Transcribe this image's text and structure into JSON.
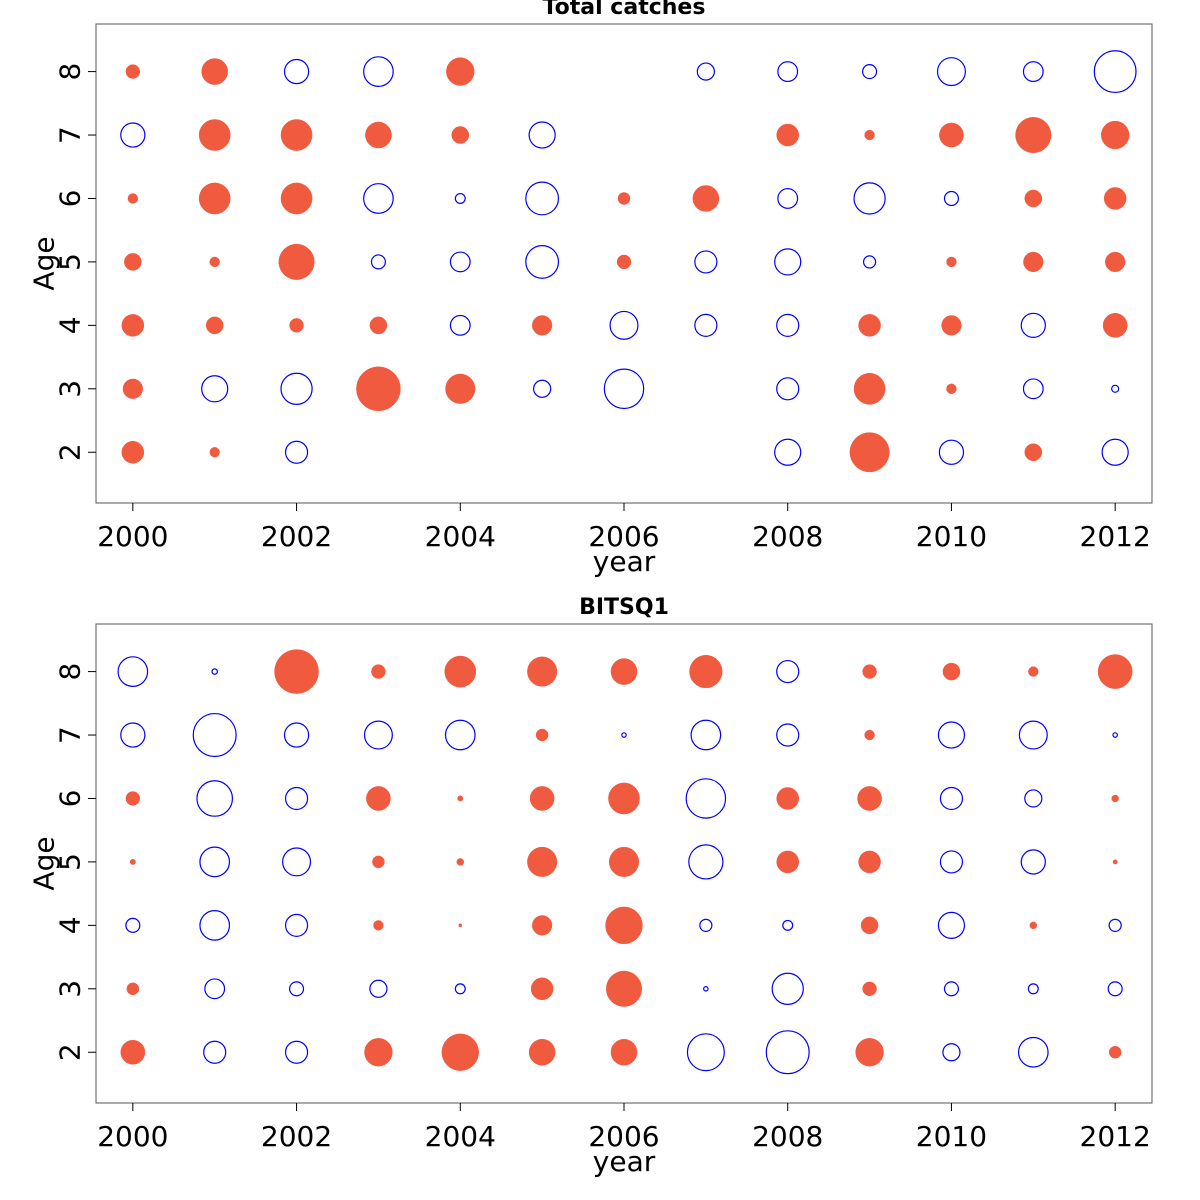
{
  "chart_data": [
    {
      "type": "scatter",
      "subtype": "bubble",
      "title": "Total catches",
      "xlabel": "year",
      "ylabel": "Age",
      "xlim": [
        1999.55,
        2012.45
      ],
      "ylim": [
        1.2,
        8.75
      ],
      "x_ticks": [
        2000,
        2002,
        2004,
        2006,
        2008,
        2010,
        2012
      ],
      "y_ticks": [
        2,
        3,
        4,
        5,
        6,
        7,
        8
      ],
      "legend": "none",
      "colors": {
        "positive": "#f05a3f",
        "negative": "#0000ff"
      },
      "years": [
        2000,
        2001,
        2002,
        2003,
        2004,
        2005,
        2006,
        2007,
        2008,
        2009,
        2010,
        2011,
        2012
      ],
      "ages": [
        2,
        3,
        4,
        5,
        6,
        7,
        8
      ],
      "note": "bubble area proportional to |value|; positive = filled red, negative = open blue; null = no bubble",
      "values": {
        "2": [
          0.5,
          0.1,
          -0.5,
          null,
          null,
          null,
          null,
          null,
          -0.7,
          1.6,
          -0.6,
          0.3,
          -0.7
        ],
        "3": [
          0.4,
          -0.7,
          -1.0,
          2.0,
          0.9,
          -0.3,
          -1.6,
          null,
          -0.5,
          1.0,
          0.1,
          -0.4,
          -0.05
        ],
        "4": [
          0.5,
          0.3,
          0.2,
          0.3,
          -0.4,
          0.4,
          -0.8,
          -0.5,
          -0.5,
          0.5,
          0.4,
          -0.6,
          0.6
        ],
        "5": [
          0.3,
          0.1,
          1.3,
          -0.2,
          -0.4,
          -1.1,
          0.2,
          -0.5,
          -0.7,
          -0.15,
          0.1,
          0.4,
          0.4
        ],
        "6": [
          0.1,
          1.0,
          1.0,
          -0.9,
          -0.1,
          -1.1,
          0.15,
          0.7,
          -0.4,
          -1.0,
          -0.2,
          0.3,
          0.5
        ],
        "7": [
          -0.6,
          1.0,
          1.0,
          0.7,
          0.3,
          -0.7,
          null,
          null,
          0.5,
          0.1,
          0.6,
          1.3,
          0.8
        ],
        "8": [
          0.2,
          0.7,
          -0.6,
          -0.9,
          0.8,
          null,
          null,
          -0.3,
          -0.4,
          -0.2,
          -0.8,
          -0.4,
          -1.8
        ]
      }
    },
    {
      "type": "scatter",
      "subtype": "bubble",
      "title": "BITSQ1",
      "xlabel": "year",
      "ylabel": "Age",
      "xlim": [
        1999.55,
        2012.45
      ],
      "ylim": [
        1.2,
        8.75
      ],
      "x_ticks": [
        2000,
        2002,
        2004,
        2006,
        2008,
        2010,
        2012
      ],
      "y_ticks": [
        2,
        3,
        4,
        5,
        6,
        7,
        8
      ],
      "legend": "none",
      "colors": {
        "positive": "#f05a3f",
        "negative": "#0000ff"
      },
      "years": [
        2000,
        2001,
        2002,
        2003,
        2004,
        2005,
        2006,
        2007,
        2008,
        2009,
        2010,
        2011,
        2012
      ],
      "ages": [
        2,
        3,
        4,
        5,
        6,
        7,
        8
      ],
      "note": "bubble area proportional to |value|; positive = filled red, negative = open blue",
      "values": {
        "2": [
          0.6,
          -0.5,
          -0.5,
          0.8,
          1.4,
          0.7,
          0.7,
          -1.4,
          -1.9,
          0.8,
          -0.3,
          -0.9,
          0.15
        ],
        "3": [
          0.15,
          -0.4,
          -0.2,
          -0.3,
          -0.1,
          0.5,
          1.3,
          -0.02,
          -1.0,
          0.2,
          -0.2,
          -0.1,
          -0.2
        ],
        "4": [
          -0.2,
          -0.9,
          -0.5,
          0.1,
          0.01,
          0.4,
          1.4,
          -0.15,
          -0.1,
          0.3,
          -0.7,
          0.05,
          -0.15
        ],
        "5": [
          0.03,
          -0.9,
          -0.8,
          0.15,
          0.05,
          0.9,
          0.9,
          -1.2,
          0.5,
          0.5,
          -0.5,
          -0.6,
          0.02
        ],
        "6": [
          0.2,
          -1.3,
          -0.5,
          0.6,
          0.03,
          0.6,
          1.0,
          -1.6,
          0.5,
          0.6,
          -0.5,
          -0.3,
          0.05
        ],
        "7": [
          -0.6,
          -1.9,
          -0.6,
          -0.8,
          -0.9,
          0.15,
          -0.02,
          -0.9,
          -0.5,
          0.1,
          -0.7,
          -0.8,
          -0.02
        ],
        "8": [
          -0.9,
          -0.03,
          2.0,
          0.2,
          1.0,
          0.9,
          0.7,
          1.1,
          -0.5,
          0.2,
          0.3,
          0.1,
          1.2
        ]
      }
    }
  ]
}
